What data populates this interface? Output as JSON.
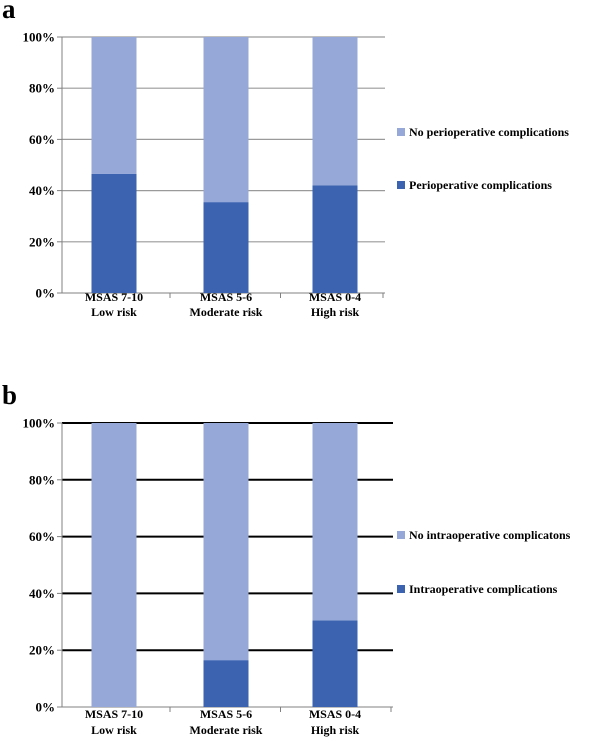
{
  "colors": {
    "light": "#95a8d8",
    "dark": "#3b63b0",
    "axis": "#808080",
    "grid_a": "#9a9a9a",
    "grid_b": "#000000"
  },
  "chart_data": [
    {
      "panel": "a",
      "type": "bar",
      "stacked": true,
      "categories": [
        [
          "MSAS 7-10",
          "Low risk"
        ],
        [
          "MSAS 5-6",
          "Moderate risk"
        ],
        [
          "MSAS 0-4",
          "High risk"
        ]
      ],
      "series": [
        {
          "name": "Perioperative complications",
          "values": [
            46.5,
            35.5,
            42.0
          ]
        },
        {
          "name": "No perioperative complications",
          "values": [
            53.5,
            64.5,
            58.0
          ]
        }
      ],
      "y_ticks": [
        "0%",
        "20%",
        "40%",
        "60%",
        "80%",
        "100%"
      ],
      "ylim": [
        0,
        100
      ],
      "grid": true,
      "legend_position": "right"
    },
    {
      "panel": "b",
      "type": "bar",
      "stacked": true,
      "categories": [
        [
          "MSAS 7-10",
          "Low risk"
        ],
        [
          "MSAS 5-6",
          "Moderate risk"
        ],
        [
          "MSAS 0-4",
          "High risk"
        ]
      ],
      "series": [
        {
          "name": "Intraoperative complications",
          "values": [
            0,
            16.5,
            30.5
          ]
        },
        {
          "name": "No intraoperative complicatons",
          "values": [
            100,
            83.5,
            69.5
          ]
        }
      ],
      "y_ticks": [
        "0%",
        "20%",
        "40%",
        "60%",
        "80%",
        "100%"
      ],
      "ylim": [
        0,
        100
      ],
      "grid": true,
      "legend_position": "right"
    }
  ]
}
